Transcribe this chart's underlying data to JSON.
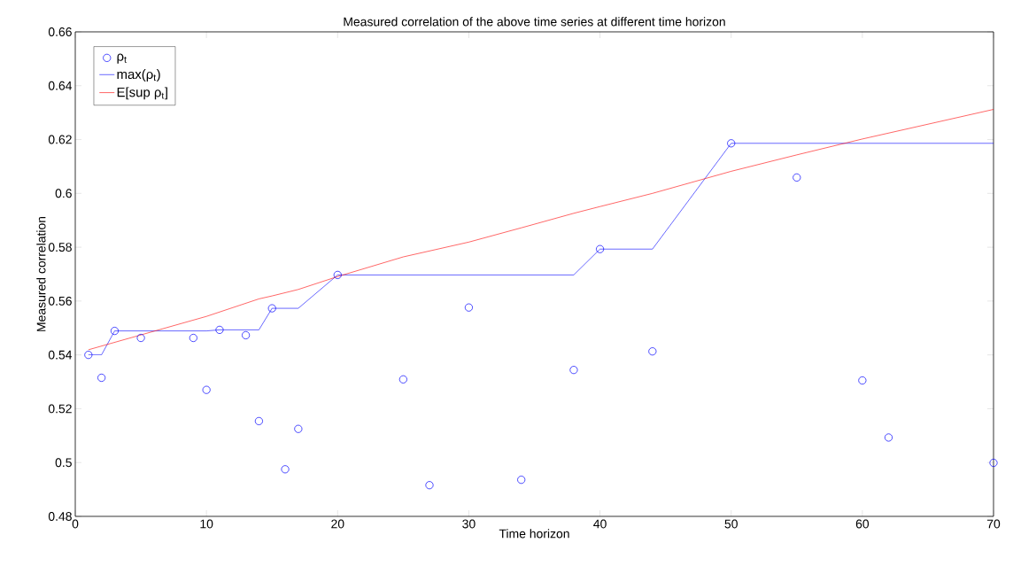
{
  "chart_data": {
    "type": "line",
    "title": "Measured correlation of the above time series at different time horizon",
    "xlabel": "Time horizon",
    "ylabel": "Measured correlation",
    "xlim": [
      0,
      70
    ],
    "xticks": [
      0,
      10,
      20,
      30,
      40,
      50,
      60,
      70
    ],
    "ylim": [
      0.48,
      0.66
    ],
    "yticks": [
      0.48,
      0.5,
      0.52,
      0.54,
      0.56,
      0.58,
      0.6,
      0.62,
      0.64,
      0.66
    ],
    "legend": "top left",
    "series": [
      {
        "name": "ρ$_{t}$",
        "type": "scatter",
        "marker": "circle",
        "color": "#0000ff",
        "x": [
          1,
          2,
          3,
          5,
          9,
          10,
          11,
          13,
          14,
          15,
          16,
          17,
          20,
          25,
          27,
          30,
          34,
          38,
          40,
          44,
          50,
          55,
          60,
          62,
          70
        ],
        "values": [
          0.54,
          0.5315,
          0.5489,
          0.5463,
          0.5463,
          0.527,
          0.5493,
          0.5473,
          0.5154,
          0.5573,
          0.4975,
          0.5125,
          0.5697,
          0.5309,
          0.4916,
          0.5576,
          0.4936,
          0.5344,
          0.5793,
          0.5413,
          0.6186,
          0.6059,
          0.5305,
          0.5093,
          0.4999
        ]
      },
      {
        "name": "max(ρ$_{t}$)",
        "line_style": "solid",
        "color": "#0000ff",
        "x": [
          1,
          2,
          3,
          10,
          11,
          14,
          15,
          17,
          20,
          38,
          40,
          44,
          50,
          70
        ],
        "values": [
          0.54,
          0.54,
          0.5489,
          0.5489,
          0.5493,
          0.5493,
          0.5573,
          0.5573,
          0.5697,
          0.5697,
          0.5793,
          0.5793,
          0.6186,
          0.6186
        ]
      },
      {
        "name": "E[sup ρ$_{t}$]",
        "line_style": "solid",
        "color": "#ff0000",
        "x": [
          1,
          10,
          14,
          15,
          17,
          20,
          25,
          30,
          34,
          38,
          40,
          44,
          50,
          55,
          60,
          70
        ],
        "values": [
          0.5419,
          0.5543,
          0.5608,
          0.5619,
          0.5643,
          0.5691,
          0.5764,
          0.5819,
          0.5872,
          0.5926,
          0.5951,
          0.6,
          0.6082,
          0.6143,
          0.6202,
          0.6312
        ]
      }
    ]
  }
}
